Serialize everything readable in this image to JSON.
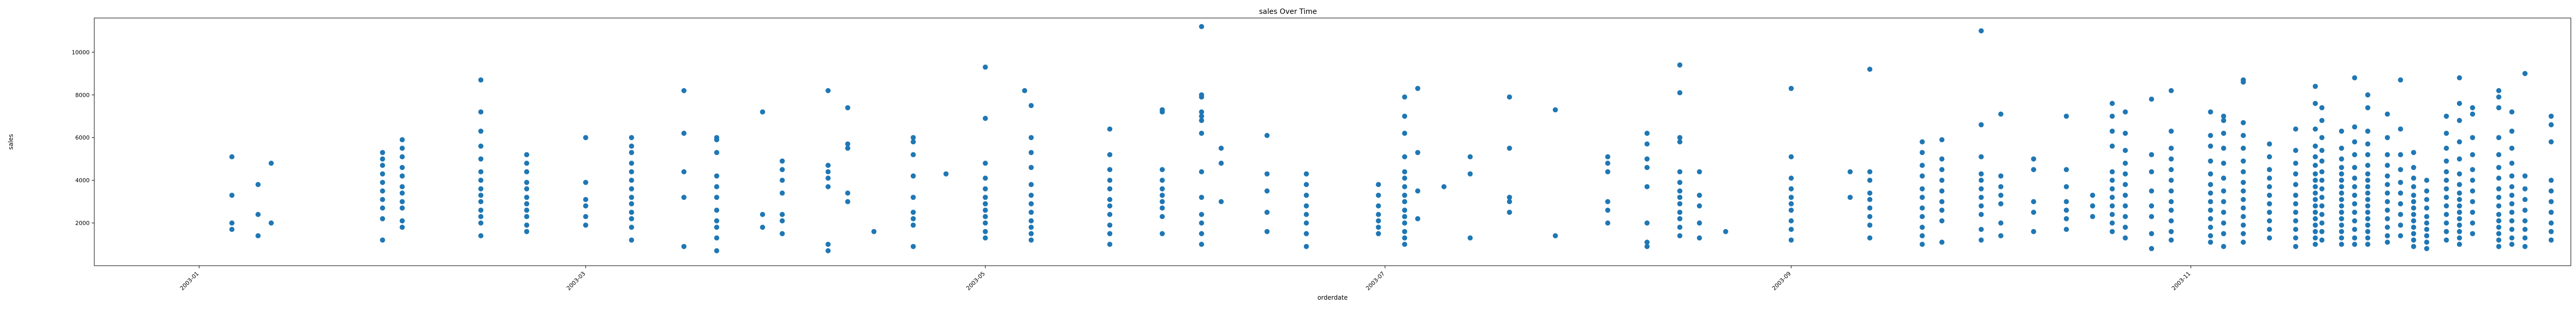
{
  "chart_data": {
    "type": "scatter",
    "title": "sales Over Time",
    "xlabel": "orderdate",
    "ylabel": "sales",
    "x_ticks": [
      "2003-01",
      "2003-03",
      "2003-05",
      "2003-07",
      "2003-09",
      "2003-11"
    ],
    "y_ticks": [
      2000,
      4000,
      6000,
      8000,
      10000
    ],
    "xlim": [
      "2002-12-16",
      "2003-12-29"
    ],
    "ylim": [
      0,
      11600
    ],
    "grid": false,
    "point_color": "#1f77b4",
    "clusters": [
      {
        "date": "2003-01-06",
        "values": [
          1700,
          2000,
          3300,
          5100
        ]
      },
      {
        "date": "2003-01-10",
        "values": [
          1400,
          2400,
          3800
        ]
      },
      {
        "date": "2003-01-12",
        "values": [
          2000,
          4800
        ]
      },
      {
        "date": "2003-01-29",
        "values": [
          1200,
          2200,
          2700,
          3100,
          3500,
          3900,
          4300,
          4700,
          5000,
          5300
        ]
      },
      {
        "date": "2003-02-01",
        "values": [
          1800,
          2100,
          2700,
          3000,
          3400,
          3700,
          4200,
          4600,
          5100,
          5500,
          5900
        ]
      },
      {
        "date": "2003-02-13",
        "values": [
          1400,
          2000,
          2300,
          2600,
          3000,
          3300,
          3600,
          4000,
          4400,
          5000,
          5600,
          6300,
          7200,
          8700
        ]
      },
      {
        "date": "2003-02-20",
        "values": [
          1600,
          1900,
          2300,
          2600,
          2900,
          3200,
          3600,
          3900,
          4400,
          4800,
          5200
        ]
      },
      {
        "date": "2003-03-01",
        "values": [
          1900,
          2300,
          2800,
          3100,
          3900,
          6000
        ]
      },
      {
        "date": "2003-03-08",
        "values": [
          1200,
          1800,
          2200,
          2500,
          2900,
          3200,
          3600,
          4000,
          4400,
          4800,
          5300,
          5600,
          6000
        ]
      },
      {
        "date": "2003-03-16",
        "values": [
          900,
          3200,
          4400,
          6200,
          8200
        ]
      },
      {
        "date": "2003-03-21",
        "values": [
          700,
          1300,
          1800,
          2100,
          2600,
          3200,
          3700,
          4200,
          5300,
          5900,
          6000
        ]
      },
      {
        "date": "2003-03-28",
        "values": [
          1800,
          2400,
          7200
        ]
      },
      {
        "date": "2003-03-31",
        "values": [
          1500,
          2100,
          2400,
          3400,
          4000,
          4500,
          4900
        ]
      },
      {
        "date": "2003-04-07",
        "values": [
          700,
          1000,
          3700,
          4100,
          4400,
          4700,
          8200
        ]
      },
      {
        "date": "2003-04-10",
        "values": [
          3000,
          3400,
          5500,
          5700,
          7400
        ]
      },
      {
        "date": "2003-04-14",
        "values": [
          1600
        ]
      },
      {
        "date": "2003-04-20",
        "values": [
          900,
          1900,
          2200,
          2500,
          3200,
          4200,
          5200,
          5800,
          6000
        ]
      },
      {
        "date": "2003-04-25",
        "values": [
          4300
        ]
      },
      {
        "date": "2003-05-01",
        "values": [
          1300,
          1600,
          2000,
          2300,
          2600,
          2900,
          3200,
          3600,
          4100,
          4800,
          6900,
          9300
        ]
      },
      {
        "date": "2003-05-07",
        "values": [
          8200
        ]
      },
      {
        "date": "2003-05-08",
        "values": [
          1200,
          1500,
          1800,
          2100,
          2500,
          2900,
          3300,
          3800,
          4600,
          5300,
          6000,
          7500
        ]
      },
      {
        "date": "2003-05-20",
        "values": [
          1000,
          1500,
          1900,
          2400,
          2800,
          3100,
          3600,
          4000,
          4500,
          5200,
          6400
        ]
      },
      {
        "date": "2003-05-28",
        "values": [
          1500,
          2300,
          2700,
          3000,
          3300,
          3600,
          4000,
          4500,
          7200,
          7300
        ]
      },
      {
        "date": "2003-06-03",
        "values": [
          1000,
          1500,
          2000,
          2400,
          3200,
          4400,
          6200,
          6800,
          7000,
          7200,
          7900,
          8000,
          11200
        ]
      },
      {
        "date": "2003-06-06",
        "values": [
          3000,
          4800,
          5500
        ]
      },
      {
        "date": "2003-06-13",
        "values": [
          1600,
          2500,
          3500,
          4300,
          6100
        ]
      },
      {
        "date": "2003-06-19",
        "values": [
          900,
          1500,
          2000,
          2400,
          2800,
          3300,
          3800,
          4300
        ]
      },
      {
        "date": "2003-06-30",
        "values": [
          1500,
          1800,
          2100,
          2400,
          2800,
          3300,
          3800
        ]
      },
      {
        "date": "2003-07-04",
        "values": [
          1000,
          1300,
          1600,
          2000,
          2300,
          2600,
          3000,
          3300,
          3700,
          4100,
          4400,
          5100,
          6200,
          7000,
          7900
        ]
      },
      {
        "date": "2003-07-06",
        "values": [
          2200,
          3500,
          5300,
          8300
        ]
      },
      {
        "date": "2003-07-10",
        "values": [
          3700
        ]
      },
      {
        "date": "2003-07-14",
        "values": [
          1300,
          4300,
          5100
        ]
      },
      {
        "date": "2003-07-20",
        "values": [
          2500,
          3000,
          3200,
          5500,
          7900
        ]
      },
      {
        "date": "2003-07-27",
        "values": [
          1400,
          7300
        ]
      },
      {
        "date": "2003-08-04",
        "values": [
          2000,
          2600,
          3000,
          4400,
          4800,
          5100
        ]
      },
      {
        "date": "2003-08-10",
        "values": [
          900,
          1100,
          2000,
          3700,
          4600,
          5000,
          5700,
          6200
        ]
      },
      {
        "date": "2003-08-15",
        "values": [
          1400,
          1800,
          2200,
          2500,
          2900,
          3200,
          3500,
          3900,
          4400,
          5800,
          6000,
          8100,
          9400
        ]
      },
      {
        "date": "2003-08-18",
        "values": [
          1300,
          2000,
          2800,
          3300,
          4400
        ]
      },
      {
        "date": "2003-08-22",
        "values": [
          1600
        ]
      },
      {
        "date": "2003-09-01",
        "values": [
          1200,
          1700,
          2100,
          2600,
          2900,
          3200,
          3600,
          4100,
          5100,
          8300
        ]
      },
      {
        "date": "2003-09-10",
        "values": [
          3200,
          4400
        ]
      },
      {
        "date": "2003-09-13",
        "values": [
          1300,
          1900,
          2300,
          2700,
          3100,
          3400,
          4000,
          4400,
          9200
        ]
      },
      {
        "date": "2003-09-21",
        "values": [
          1000,
          1400,
          1800,
          2300,
          2700,
          3200,
          3600,
          4200,
          4700,
          5300,
          5800
        ]
      },
      {
        "date": "2003-09-24",
        "values": [
          1100,
          2100,
          2600,
          3000,
          3500,
          4000,
          4500,
          5000,
          5900
        ]
      },
      {
        "date": "2003-09-30",
        "values": [
          1200,
          1700,
          2400,
          2800,
          3200,
          3600,
          4000,
          4300,
          5100,
          6600,
          11000
        ]
      },
      {
        "date": "2003-10-03",
        "values": [
          1400,
          2000,
          2900,
          3300,
          3700,
          4200,
          7100
        ]
      },
      {
        "date": "2003-10-08",
        "values": [
          1600,
          2500,
          3000,
          4500,
          5000
        ]
      },
      {
        "date": "2003-10-13",
        "values": [
          1700,
          2200,
          2600,
          3000,
          3700,
          4500,
          7000
        ]
      },
      {
        "date": "2003-10-17",
        "values": [
          2300,
          2800,
          3300
        ]
      },
      {
        "date": "2003-10-20",
        "values": [
          1600,
          2000,
          2400,
          2800,
          3200,
          3600,
          4000,
          4400,
          5600,
          6300,
          7000,
          7600
        ]
      },
      {
        "date": "2003-10-22",
        "values": [
          1300,
          1800,
          2300,
          2800,
          3300,
          3800,
          4300,
          4800,
          5400,
          6200,
          7200
        ]
      },
      {
        "date": "2003-10-26",
        "values": [
          800,
          1500,
          2300,
          2800,
          3500,
          4400,
          5200,
          7800
        ]
      },
      {
        "date": "2003-10-29",
        "values": [
          1200,
          1600,
          2100,
          2600,
          3000,
          3500,
          4000,
          4500,
          5000,
          5500,
          6300,
          8200
        ]
      },
      {
        "date": "2003-11-04",
        "values": [
          1100,
          1400,
          1800,
          2200,
          2600,
          3000,
          3400,
          3800,
          4300,
          4900,
          5600,
          6100,
          7200
        ]
      },
      {
        "date": "2003-11-06",
        "values": [
          900,
          1500,
          2000,
          2500,
          3000,
          3500,
          4100,
          4800,
          5500,
          6200,
          6800,
          7000
        ]
      },
      {
        "date": "2003-11-09",
        "values": [
          1100,
          1500,
          1900,
          2300,
          2700,
          3100,
          3500,
          3900,
          4400,
          4900,
          5500,
          6100,
          6700,
          8600,
          8700
        ]
      },
      {
        "date": "2003-11-13",
        "values": [
          1300,
          1700,
          2100,
          2500,
          2900,
          3300,
          3700,
          4100,
          4500,
          5100,
          5700
        ]
      },
      {
        "date": "2003-11-17",
        "values": [
          900,
          1300,
          1700,
          2100,
          2500,
          2900,
          3300,
          3800,
          4300,
          4800,
          5400,
          6400
        ]
      },
      {
        "date": "2003-11-20",
        "values": [
          1000,
          1300,
          1600,
          1900,
          2200,
          2500,
          2800,
          3100,
          3400,
          3700,
          4000,
          4300,
          4700,
          5100,
          5600,
          6400,
          7600,
          8400
        ]
      },
      {
        "date": "2003-11-21",
        "values": [
          1200,
          1600,
          2000,
          2400,
          2800,
          3200,
          3600,
          4000,
          4400,
          4900,
          5400,
          6000,
          6800,
          7400
        ]
      },
      {
        "date": "2003-11-24",
        "values": [
          1000,
          1300,
          1600,
          1900,
          2200,
          2500,
          2800,
          3100,
          3400,
          3700,
          4000,
          4300,
          4600,
          5000,
          5500,
          6300
        ]
      },
      {
        "date": "2003-11-26",
        "values": [
          1000,
          1300,
          1700,
          2100,
          2500,
          2900,
          3300,
          3700,
          4100,
          4600,
          5200,
          5800,
          6500,
          8800
        ]
      },
      {
        "date": "2003-11-28",
        "values": [
          1000,
          1300,
          1600,
          1900,
          2200,
          2500,
          2800,
          3100,
          3400,
          3700,
          4000,
          4300,
          4700,
          5200,
          5700,
          6300,
          7400,
          8000
        ]
      },
      {
        "date": "2003-12-01",
        "values": [
          1100,
          1400,
          1800,
          2200,
          2600,
          3000,
          3400,
          3800,
          4200,
          4700,
          5200,
          6000,
          7100
        ]
      },
      {
        "date": "2003-12-03",
        "values": [
          1400,
          1900,
          2400,
          2900,
          3400,
          3900,
          4500,
          5200,
          6400,
          8700
        ]
      },
      {
        "date": "2003-12-05",
        "values": [
          900,
          1200,
          1500,
          1800,
          2100,
          2400,
          2700,
          3000,
          3300,
          3700,
          4100,
          4600,
          5300
        ]
      },
      {
        "date": "2003-12-07",
        "values": [
          800,
          1100,
          1400,
          1700,
          2000,
          2300,
          2700,
          3100,
          3500,
          4000
        ]
      },
      {
        "date": "2003-12-10",
        "values": [
          1200,
          1600,
          2000,
          2400,
          2800,
          3200,
          3600,
          4000,
          4400,
          4900,
          5500,
          6200,
          7000
        ]
      },
      {
        "date": "2003-12-12",
        "values": [
          1000,
          1300,
          1600,
          1900,
          2200,
          2500,
          2800,
          3100,
          3400,
          3800,
          4300,
          5000,
          5800,
          6800,
          7600,
          8800
        ]
      },
      {
        "date": "2003-12-14",
        "values": [
          1500,
          2000,
          2500,
          3000,
          3500,
          4000,
          4500,
          5200,
          6000,
          7100,
          7400
        ]
      },
      {
        "date": "2003-12-18",
        "values": [
          900,
          1200,
          1500,
          1800,
          2100,
          2400,
          2800,
          3200,
          3600,
          4100,
          4600,
          5200,
          6000,
          7400,
          7900,
          8200
        ]
      },
      {
        "date": "2003-12-20",
        "values": [
          1000,
          1300,
          1700,
          2100,
          2500,
          2900,
          3300,
          3700,
          4200,
          4800,
          5500,
          6300,
          7200
        ]
      },
      {
        "date": "2003-12-22",
        "values": [
          900,
          1300,
          1700,
          2100,
          2600,
          3100,
          3600,
          4200,
          9000
        ]
      },
      {
        "date": "2003-12-26",
        "values": [
          1200,
          1600,
          2000,
          2500,
          3000,
          3500,
          4000,
          5800,
          6600,
          7000
        ]
      }
    ]
  }
}
